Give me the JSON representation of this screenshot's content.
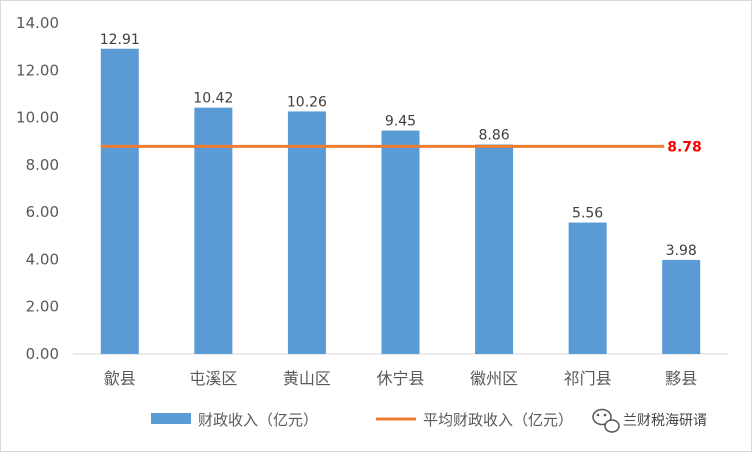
{
  "chart_data": {
    "type": "bar",
    "categories": [
      "歙县",
      "屯溪区",
      "黄山区",
      "休宁县",
      "徽州区",
      "祁门县",
      "黟县"
    ],
    "series": [
      {
        "name": "财政收入（亿元）",
        "values": [
          12.91,
          10.42,
          10.26,
          9.45,
          8.86,
          5.56,
          3.98
        ],
        "color": "#5b9bd5"
      }
    ],
    "average_line": {
      "name": "平均财政收入（亿元）",
      "value": 8.78,
      "label": "8.78",
      "color": "#ed7d31",
      "label_color": "#ff0000"
    },
    "data_labels": [
      "12.91",
      "10.42",
      "10.26",
      "9.45",
      "8.86",
      "5.56",
      "3.98"
    ],
    "yticks": [
      "0.00",
      "2.00",
      "4.00",
      "6.00",
      "8.00",
      "10.00",
      "12.00",
      "14.00"
    ],
    "ylim": [
      0,
      14
    ],
    "grid": false,
    "legend_position": "bottom",
    "title": "",
    "xlabel": "",
    "ylabel": ""
  },
  "watermark": {
    "text": "兰财税海研谞",
    "icon": "wechat-icon"
  }
}
